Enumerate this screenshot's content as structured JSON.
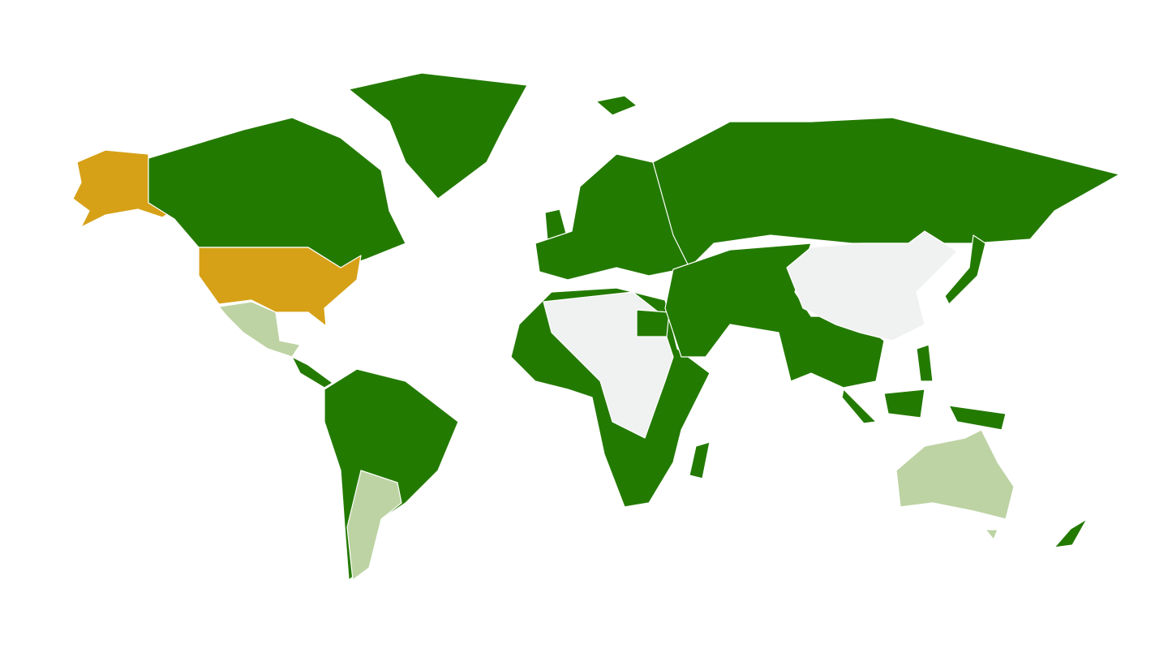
{
  "map": {
    "type": "choropleth-world",
    "legend": "none",
    "colors": {
      "primary": "#237a00",
      "highlight": "#d6a117",
      "secondary": "#bdd3a3",
      "no_data": "#f0f1f1"
    },
    "regions": [
      {
        "id": "alaska",
        "category": "highlight"
      },
      {
        "id": "canada",
        "category": "primary"
      },
      {
        "id": "greenland",
        "category": "primary"
      },
      {
        "id": "usa",
        "category": "highlight"
      },
      {
        "id": "mexico",
        "category": "secondary"
      },
      {
        "id": "central-america",
        "category": "primary"
      },
      {
        "id": "south-america",
        "category": "primary"
      },
      {
        "id": "argentina",
        "category": "secondary"
      },
      {
        "id": "europe",
        "category": "primary"
      },
      {
        "id": "iceland",
        "category": "primary"
      },
      {
        "id": "uk",
        "category": "primary"
      },
      {
        "id": "africa",
        "category": "primary"
      },
      {
        "id": "north-central-africa",
        "category": "no_data"
      },
      {
        "id": "egypt",
        "category": "primary"
      },
      {
        "id": "madagascar",
        "category": "primary"
      },
      {
        "id": "russia",
        "category": "primary"
      },
      {
        "id": "middle-south-asia",
        "category": "primary"
      },
      {
        "id": "china",
        "category": "no_data"
      },
      {
        "id": "japan",
        "category": "primary"
      },
      {
        "id": "southeast-asia",
        "category": "primary"
      },
      {
        "id": "indonesia",
        "category": "primary"
      },
      {
        "id": "australia",
        "category": "secondary"
      },
      {
        "id": "new-zealand",
        "category": "primary"
      }
    ]
  }
}
